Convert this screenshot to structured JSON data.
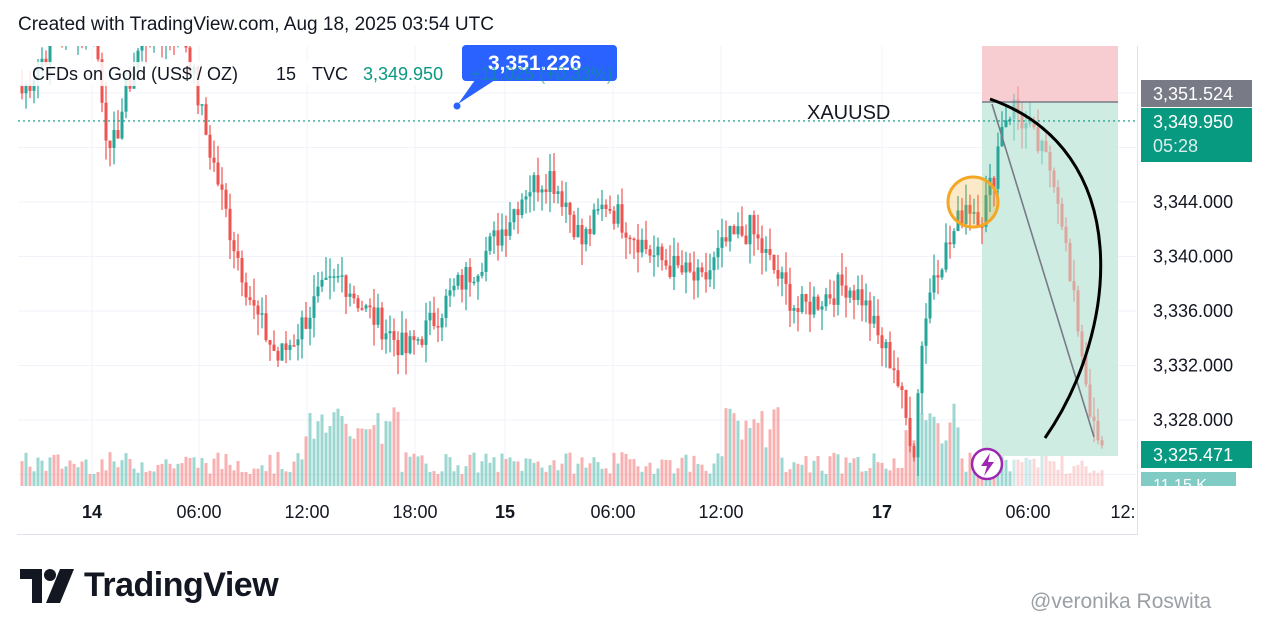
{
  "header": {
    "created_text": "Created with TradingView.com, Aug 18, 2025 03:54 UTC"
  },
  "legend": {
    "symbol_name": "CFDs on Gold (US$ / OZ)",
    "interval": "15",
    "source": "TVC",
    "last_value": "3,349.950",
    "change_text": "+11.025 (+0.33%)"
  },
  "tooltip": {
    "value": "3,351.226"
  },
  "annotation": {
    "label": "XAUUSD"
  },
  "price_tags": {
    "top": "3,351.524",
    "current": "3,349.950",
    "countdown": "05:28",
    "bottom": "3,325.471",
    "volume": "11.15 K"
  },
  "colors": {
    "up": "#26a69a",
    "down": "#ef5350",
    "tooltip": "#2962ff",
    "current": "#089981",
    "top_tag": "#787b86",
    "stop_zone": "#f7cdd2",
    "target_zone": "#c9eadf",
    "highlight_circle": "#f5a623",
    "flash_icon": "#9c27b0"
  },
  "footer": {
    "brand": "TradingView",
    "watermark": "@veronika Roswita"
  },
  "chart_data": {
    "type": "candlestick",
    "symbol": "XAUUSD",
    "y_ticks": [
      "3,344.000",
      "3,340.000",
      "3,336.000",
      "3,332.000",
      "3,328.000"
    ],
    "y_tick_values": [
      3344,
      3340,
      3336,
      3332,
      3328
    ],
    "x_ticks": [
      "14",
      "06:00",
      "12:00",
      "18:00",
      "15",
      "06:00",
      "12:00",
      "17",
      "06:00",
      "12:"
    ],
    "ylim": [
      3323,
      3355
    ],
    "last_price": 3349.95,
    "anchors": [
      {
        "i": 0,
        "p": 3352
      },
      {
        "i": 8,
        "p": 3356
      },
      {
        "i": 18,
        "p": 3357
      },
      {
        "i": 22,
        "p": 3347
      },
      {
        "i": 26,
        "p": 3352
      },
      {
        "i": 30,
        "p": 3356
      },
      {
        "i": 40,
        "p": 3357
      },
      {
        "i": 46,
        "p": 3349
      },
      {
        "i": 52,
        "p": 3342
      },
      {
        "i": 58,
        "p": 3336
      },
      {
        "i": 64,
        "p": 3332.5
      },
      {
        "i": 68,
        "p": 3334
      },
      {
        "i": 74,
        "p": 3337
      },
      {
        "i": 80,
        "p": 3338.5
      },
      {
        "i": 86,
        "p": 3336
      },
      {
        "i": 90,
        "p": 3335
      },
      {
        "i": 96,
        "p": 3333
      },
      {
        "i": 102,
        "p": 3335
      },
      {
        "i": 108,
        "p": 3337.5
      },
      {
        "i": 114,
        "p": 3339.5
      },
      {
        "i": 120,
        "p": 3342
      },
      {
        "i": 126,
        "p": 3345
      },
      {
        "i": 132,
        "p": 3346
      },
      {
        "i": 136,
        "p": 3344
      },
      {
        "i": 140,
        "p": 3341
      },
      {
        "i": 146,
        "p": 3344
      },
      {
        "i": 152,
        "p": 3342
      },
      {
        "i": 158,
        "p": 3340
      },
      {
        "i": 164,
        "p": 3339
      },
      {
        "i": 170,
        "p": 3338
      },
      {
        "i": 176,
        "p": 3341
      },
      {
        "i": 182,
        "p": 3342
      },
      {
        "i": 188,
        "p": 3339
      },
      {
        "i": 194,
        "p": 3336
      },
      {
        "i": 200,
        "p": 3337
      },
      {
        "i": 206,
        "p": 3338
      },
      {
        "i": 210,
        "p": 3337
      },
      {
        "i": 214,
        "p": 3334
      },
      {
        "i": 218,
        "p": 3332
      },
      {
        "i": 221,
        "p": 3328
      },
      {
        "i": 223,
        "p": 3326
      },
      {
        "i": 225,
        "p": 3334
      },
      {
        "i": 228,
        "p": 3339
      },
      {
        "i": 232,
        "p": 3341
      },
      {
        "i": 236,
        "p": 3344
      },
      {
        "i": 240,
        "p": 3343
      },
      {
        "i": 243,
        "p": 3346
      },
      {
        "i": 245,
        "p": 3350
      },
      {
        "i": 248,
        "p": 3351
      },
      {
        "i": 252,
        "p": 3349
      },
      {
        "i": 256,
        "p": 3347
      },
      {
        "i": 258,
        "p": 3346
      },
      {
        "i": 260,
        "p": 3343
      },
      {
        "i": 262,
        "p": 3338
      },
      {
        "i": 264,
        "p": 3335
      },
      {
        "i": 266,
        "p": 3331
      },
      {
        "i": 268,
        "p": 3327
      },
      {
        "i": 270,
        "p": 3325.5
      }
    ]
  }
}
